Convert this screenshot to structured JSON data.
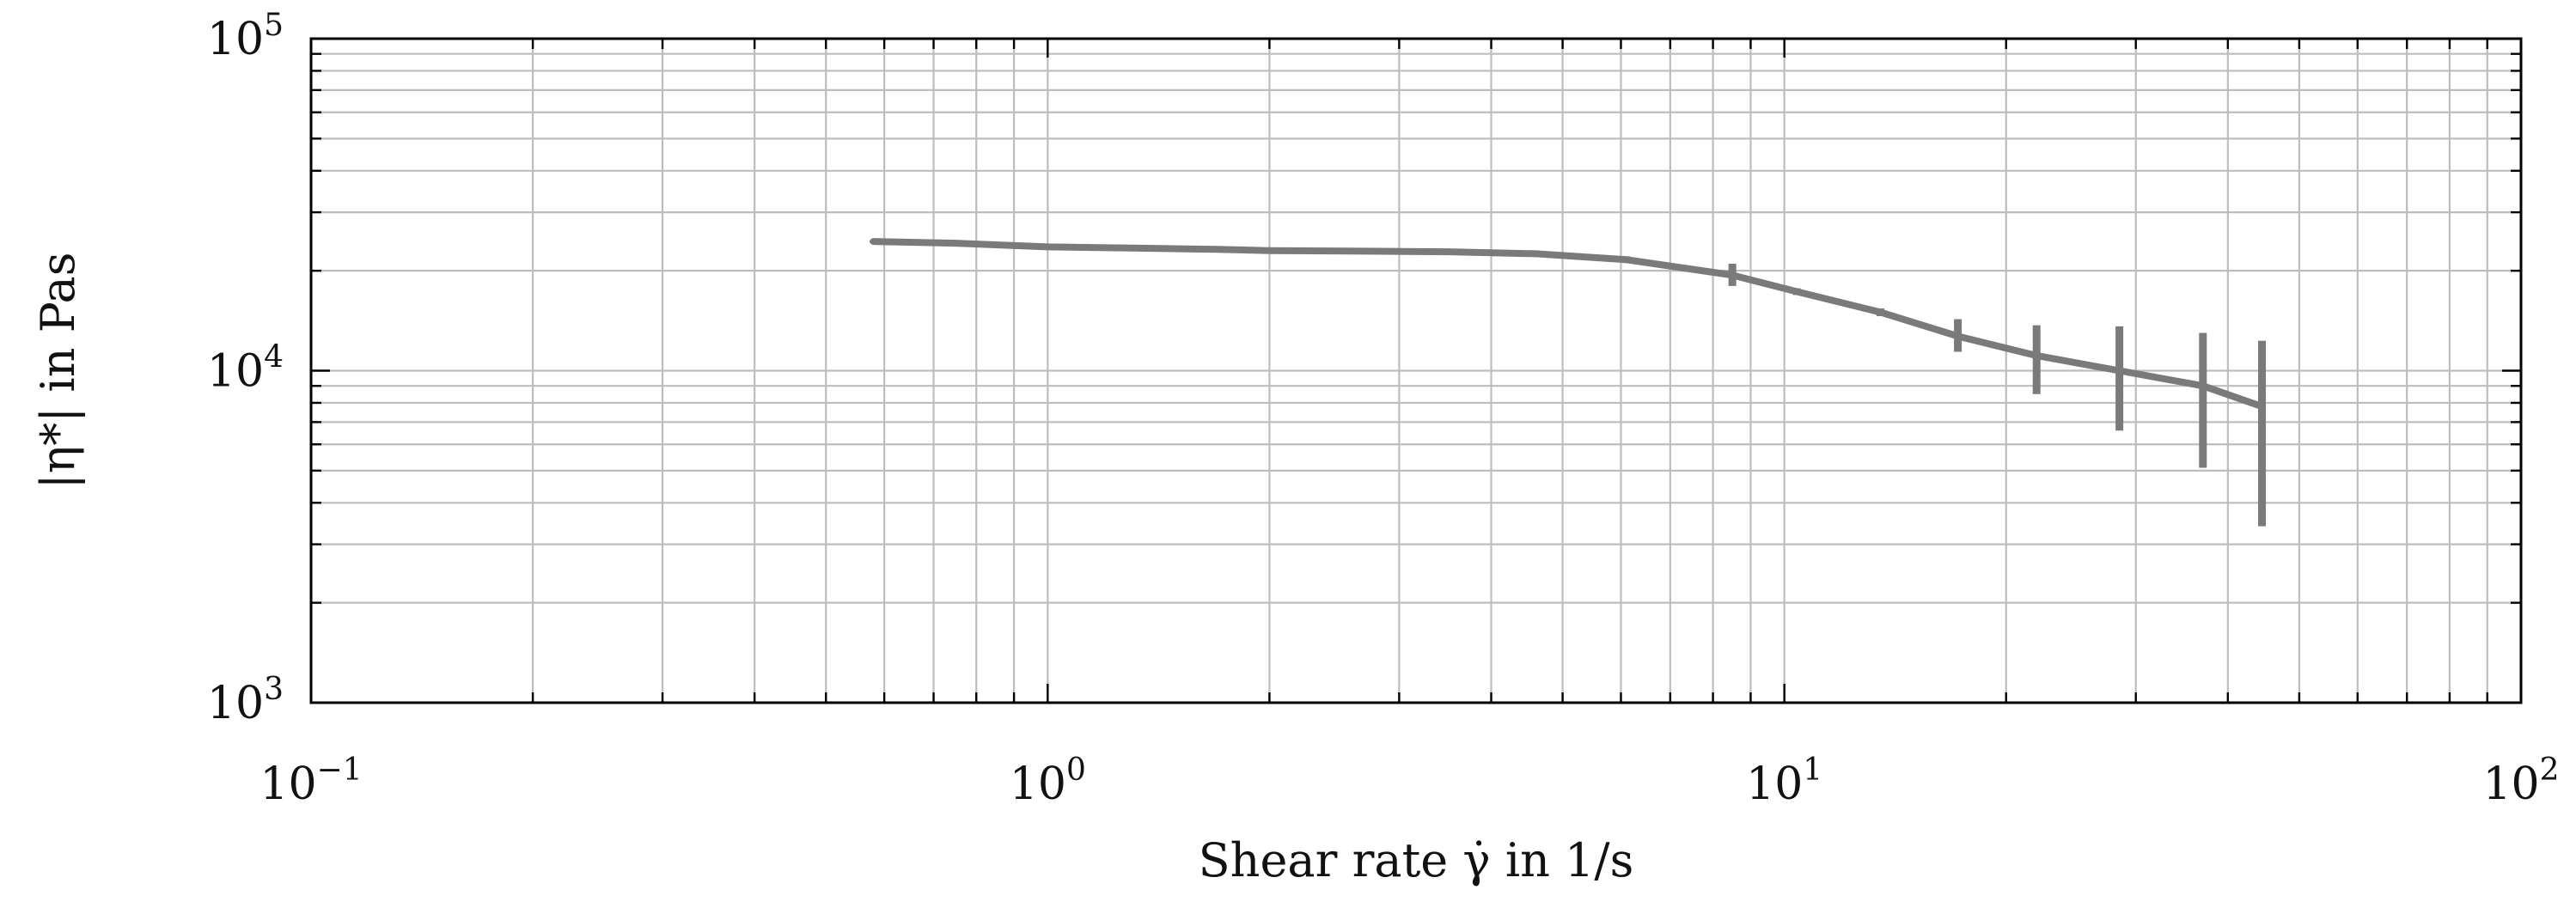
{
  "chart_data": {
    "type": "line",
    "xscale": "log",
    "yscale": "log",
    "xlim": [
      0.1,
      100
    ],
    "ylim": [
      1000,
      100000
    ],
    "grid": true,
    "xlabel": "Shear rate γ̇ in 1/s",
    "ylabel": "|η*| in Pas",
    "xticks": [
      {
        "base": "10",
        "exp": "−1",
        "value": 0.1
      },
      {
        "base": "10",
        "exp": "0",
        "value": 1
      },
      {
        "base": "10",
        "exp": "1",
        "value": 10
      },
      {
        "base": "10",
        "exp": "2",
        "value": 100
      }
    ],
    "yticks": [
      {
        "base": "10",
        "exp": "3",
        "value": 1000
      },
      {
        "base": "10",
        "exp": "4",
        "value": 10000
      },
      {
        "base": "10",
        "exp": "5",
        "value": 100000
      }
    ],
    "series": [
      {
        "color": "#7a7a7a",
        "points": [
          {
            "x": 0.58,
            "y": 24500,
            "yerr_low": 24300,
            "yerr_high": 24700
          },
          {
            "x": 0.75,
            "y": 24200,
            "yerr_low": 24000,
            "yerr_high": 24400
          },
          {
            "x": 1.0,
            "y": 23600,
            "yerr_low": 23400,
            "yerr_high": 23800
          },
          {
            "x": 1.3,
            "y": 23400,
            "yerr_low": 23200,
            "yerr_high": 23600
          },
          {
            "x": 1.7,
            "y": 23200,
            "yerr_low": 23000,
            "yerr_high": 23400
          },
          {
            "x": 2.0,
            "y": 23000,
            "yerr_low": 22800,
            "yerr_high": 23200
          },
          {
            "x": 2.7,
            "y": 22900,
            "yerr_low": 22700,
            "yerr_high": 23100
          },
          {
            "x": 3.5,
            "y": 22800,
            "yerr_low": 22400,
            "yerr_high": 23200
          },
          {
            "x": 4.6,
            "y": 22500,
            "yerr_low": 22000,
            "yerr_high": 23000
          },
          {
            "x": 6.1,
            "y": 21600,
            "yerr_low": 21100,
            "yerr_high": 22100
          },
          {
            "x": 8.5,
            "y": 19400,
            "yerr_low": 18000,
            "yerr_high": 21000
          },
          {
            "x": 10.4,
            "y": 17300,
            "yerr_low": 16900,
            "yerr_high": 17700
          },
          {
            "x": 13.5,
            "y": 15000,
            "yerr_low": 14600,
            "yerr_high": 15400
          },
          {
            "x": 17.2,
            "y": 12700,
            "yerr_low": 11400,
            "yerr_high": 14300
          },
          {
            "x": 22.0,
            "y": 11100,
            "yerr_low": 8500,
            "yerr_high": 13700
          },
          {
            "x": 28.5,
            "y": 10000,
            "yerr_low": 6600,
            "yerr_high": 13600
          },
          {
            "x": 37.0,
            "y": 9000,
            "yerr_low": 5100,
            "yerr_high": 13000
          },
          {
            "x": 44.5,
            "y": 7800,
            "yerr_low": 3400,
            "yerr_high": 12300
          }
        ]
      }
    ]
  }
}
